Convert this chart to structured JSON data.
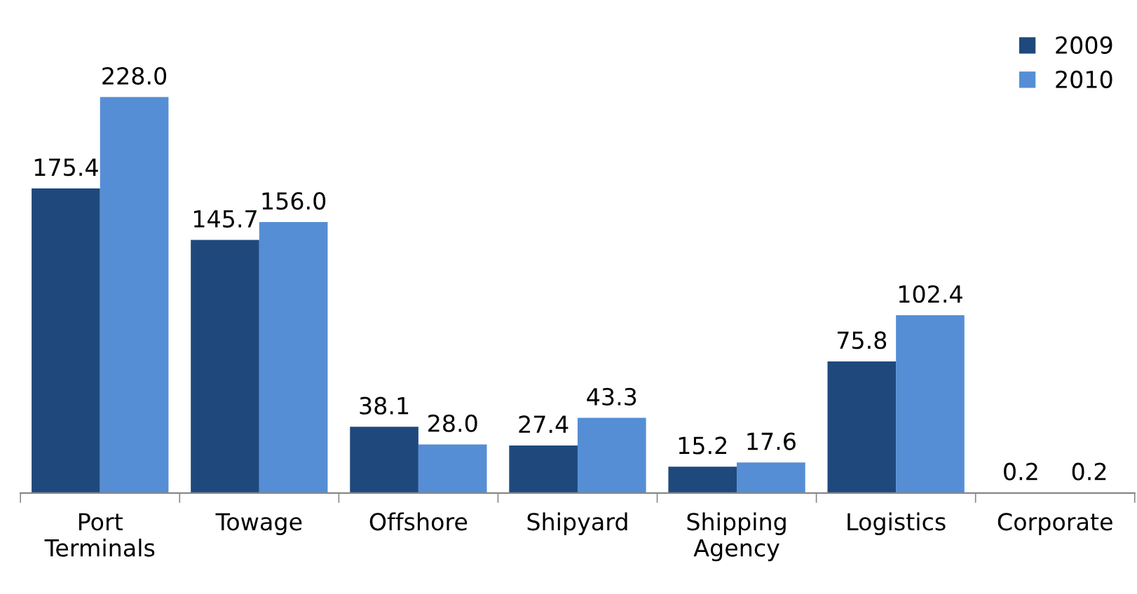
{
  "chart_data": {
    "type": "bar",
    "categories": [
      "Port\nTerminals",
      "Towage",
      "Offshore",
      "Shipyard",
      "Shipping\nAgency",
      "Logistics",
      "Corporate"
    ],
    "series": [
      {
        "name": "2009",
        "color": "#1f497d",
        "values": [
          175.4,
          145.7,
          38.1,
          27.4,
          15.2,
          75.8,
          0.2
        ],
        "value_labels": [
          "175.4",
          "145.7",
          "38.1",
          "27.4",
          "15.2",
          "75.8",
          "0.2"
        ]
      },
      {
        "name": "2010",
        "color": "#558ed5",
        "values": [
          228.0,
          156.0,
          28.0,
          43.3,
          17.6,
          102.4,
          0.2
        ],
        "value_labels": [
          "228.0",
          "156.0",
          "28.0",
          "43.3",
          "17.6",
          "102.4",
          "0.2"
        ]
      }
    ],
    "legend": "top right",
    "grid": false
  }
}
